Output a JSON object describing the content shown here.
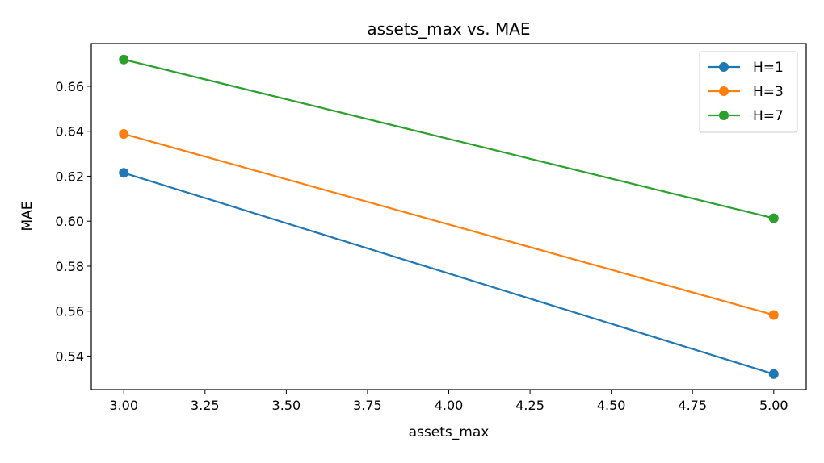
{
  "chart_data": {
    "type": "line",
    "title": "assets_max vs. MAE",
    "xlabel": "assets_max",
    "ylabel": "MAE",
    "x": [
      3.0,
      5.0
    ],
    "xlim": [
      2.9,
      5.1
    ],
    "ylim": [
      0.5251,
      0.679
    ],
    "xticks": [
      "3.00",
      "3.25",
      "3.50",
      "3.75",
      "4.00",
      "4.25",
      "4.50",
      "4.75",
      "5.00"
    ],
    "yticks": [
      "0.54",
      "0.56",
      "0.58",
      "0.60",
      "0.62",
      "0.64",
      "0.66"
    ],
    "grid": false,
    "legend_position": "top-right",
    "series": [
      {
        "name": "H=1",
        "color": "#1f77b4",
        "marker": "circle",
        "values": [
          0.6215,
          0.532
        ]
      },
      {
        "name": "H=3",
        "color": "#ff7f0e",
        "marker": "circle",
        "values": [
          0.6388,
          0.5583
        ]
      },
      {
        "name": "H=7",
        "color": "#2ca02c",
        "marker": "circle",
        "values": [
          0.6719,
          0.6013
        ]
      }
    ]
  }
}
